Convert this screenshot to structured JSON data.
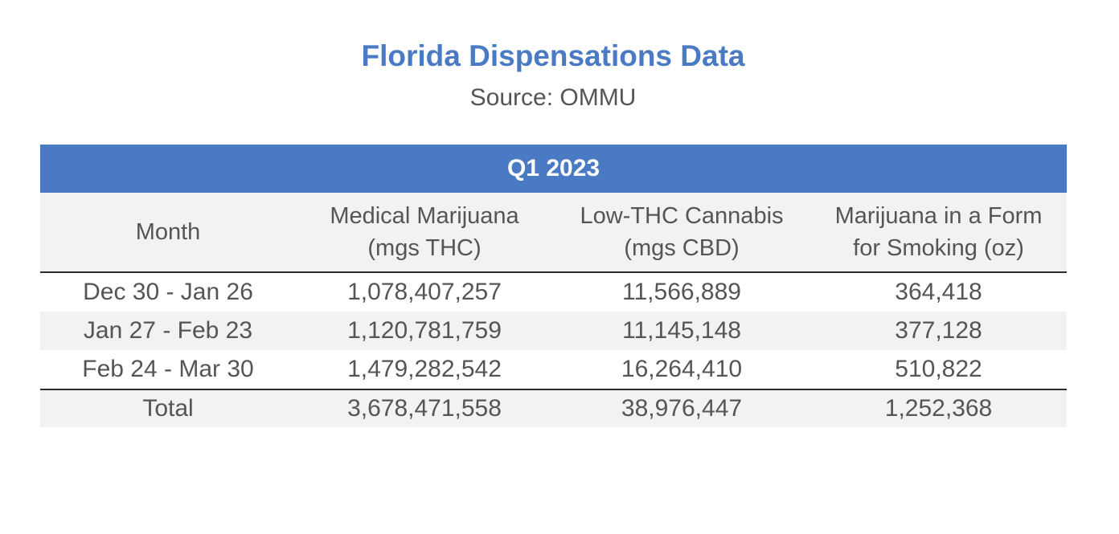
{
  "title": "Florida Dispensations Data",
  "subtitle": "Source: OMMU",
  "chart_data": {
    "type": "table",
    "title": "Florida Dispensations Data",
    "subtitle": "Source: OMMU",
    "band": "Q1 2023",
    "columns": [
      {
        "line1": "Month",
        "line2": ""
      },
      {
        "line1": "Medical Marijuana",
        "line2": "(mgs THC)"
      },
      {
        "line1": "Low-THC Cannabis",
        "line2": "(mgs CBD)"
      },
      {
        "line1": "Marijuana in a Form",
        "line2": "for Smoking (oz)"
      }
    ],
    "rows": [
      [
        "Dec 30 - Jan 26",
        "1,078,407,257",
        "11,566,889",
        "364,418"
      ],
      [
        "Jan 27 - Feb 23",
        "1,120,781,759",
        "11,145,148",
        "377,128"
      ],
      [
        "Feb 24 - Mar 30",
        "1,479,282,542",
        "16,264,410",
        "510,822"
      ]
    ],
    "total": [
      "Total",
      "3,678,471,558",
      "38,976,447",
      "1,252,368"
    ]
  },
  "colors": {
    "accent": "#4a7ac4",
    "shade": "#f1f2f2",
    "text": "#555555",
    "rule": "#2d2d2d"
  }
}
